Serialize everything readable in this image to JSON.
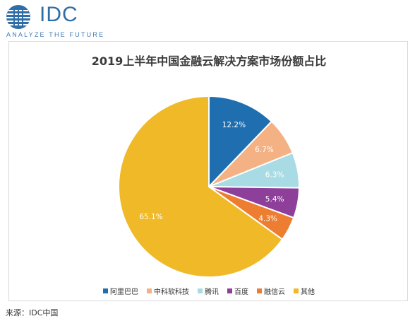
{
  "logo": {
    "text": "IDC",
    "tagline": "ANALYZE THE FUTURE",
    "color": "#2f6ea6"
  },
  "source": "来源：IDC中国",
  "chart_data": {
    "type": "pie",
    "title": "2019上半年中国金融云解决方案市场份额占比",
    "categories": [
      "阿里巴巴",
      "中科软科技",
      "腾讯",
      "百度",
      "融信云",
      "其他"
    ],
    "values": [
      12.2,
      6.7,
      6.3,
      5.4,
      4.3,
      65.1
    ],
    "labels": [
      "12.2%",
      "6.7%",
      "6.3%",
      "5.4%",
      "4.3%",
      "65.1%"
    ],
    "colors": [
      "#1f6fb0",
      "#f4b183",
      "#a9dbe5",
      "#8e3f9a",
      "#ed7d31",
      "#f0b928"
    ],
    "legend_position": "bottom"
  }
}
